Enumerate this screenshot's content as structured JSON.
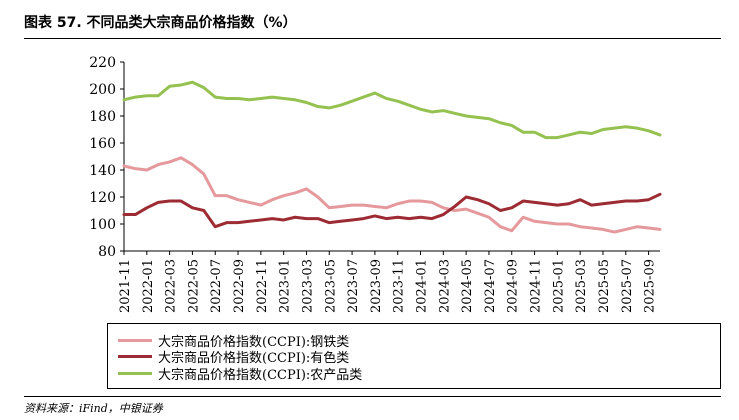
{
  "figure": {
    "title": "图表 57.  不同品类大宗商品价格指数（%）",
    "source": "资料来源：iFind，中银证券"
  },
  "colors": {
    "steel": "#e5999c",
    "nonferrous": "#9c2b33",
    "agri": "#94c14f",
    "axis": "#000000"
  },
  "chart_data": {
    "type": "line",
    "title": "",
    "xlabel": "",
    "ylabel": "",
    "ylim": [
      80,
      220
    ],
    "yticks": [
      80,
      100,
      120,
      140,
      160,
      180,
      200,
      220
    ],
    "grid": false,
    "legend_position": "bottom",
    "x": [
      "2021-11",
      "2021-12",
      "2022-01",
      "2022-02",
      "2022-03",
      "2022-04",
      "2022-05",
      "2022-06",
      "2022-07",
      "2022-08",
      "2022-09",
      "2022-10",
      "2022-11",
      "2022-12",
      "2023-01",
      "2023-02",
      "2023-03",
      "2023-04",
      "2023-05",
      "2023-06",
      "2023-07",
      "2023-08",
      "2023-09",
      "2023-10",
      "2023-11",
      "2023-12",
      "2024-01",
      "2024-02",
      "2024-03",
      "2024-04",
      "2024-05",
      "2024-06",
      "2024-07",
      "2024-08",
      "2024-09",
      "2024-10",
      "2024-11",
      "2024-12",
      "2025-01",
      "2025-02",
      "2025-03",
      "2025-04",
      "2025-05",
      "2025-06",
      "2025-07",
      "2025-08",
      "2025-09",
      "2025-10"
    ],
    "xtick_labels": [
      "2021-11",
      "2022-01",
      "2022-03",
      "2022-05",
      "2022-07",
      "2022-09",
      "2022-11",
      "2023-01",
      "2023-03",
      "2023-05",
      "2023-07",
      "2023-09",
      "2023-11",
      "2024-01",
      "2024-03",
      "2024-05",
      "2024-07",
      "2024-09",
      "2024-11",
      "2025-01",
      "2025-03",
      "2025-05",
      "2025-07",
      "2025-09"
    ],
    "series": [
      {
        "name": "大宗商品价格指数(CCPI):钢铁类",
        "color_key": "steel",
        "values": [
          143,
          141,
          140,
          144,
          146,
          149,
          144,
          137,
          121,
          121,
          118,
          116,
          114,
          118,
          121,
          123,
          126,
          120,
          112,
          113,
          114,
          114,
          113,
          112,
          115,
          117,
          117,
          116,
          112,
          110,
          111,
          108,
          105,
          98,
          95,
          105,
          102,
          101,
          100,
          100,
          98,
          97,
          96,
          94,
          96,
          98,
          97,
          96
        ]
      },
      {
        "name": "大宗商品价格指数(CCPI):有色类",
        "color_key": "nonferrous",
        "values": [
          107,
          107,
          112,
          116,
          117,
          117,
          112,
          110,
          98,
          101,
          101,
          102,
          103,
          104,
          103,
          105,
          104,
          104,
          101,
          102,
          103,
          104,
          106,
          104,
          105,
          104,
          105,
          104,
          107,
          113,
          120,
          118,
          115,
          110,
          112,
          117,
          116,
          115,
          114,
          115,
          118,
          114,
          115,
          116,
          117,
          117,
          118,
          122
        ]
      },
      {
        "name": "大宗商品价格指数(CCPI):农产品类",
        "color_key": "agri",
        "values": [
          192,
          194,
          195,
          195,
          202,
          203,
          205,
          201,
          194,
          193,
          193,
          192,
          193,
          194,
          193,
          192,
          190,
          187,
          186,
          188,
          191,
          194,
          197,
          193,
          191,
          188,
          185,
          183,
          184,
          182,
          180,
          179,
          178,
          175,
          173,
          168,
          168,
          164,
          164,
          166,
          168,
          167,
          170,
          171,
          172,
          171,
          169,
          166
        ]
      }
    ]
  }
}
